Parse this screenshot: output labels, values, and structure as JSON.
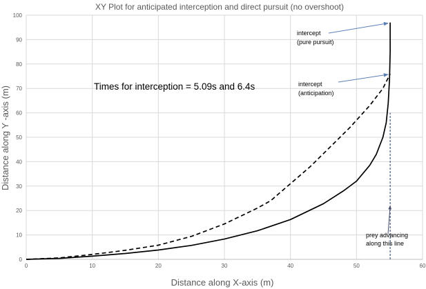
{
  "chart_data": {
    "type": "line",
    "title": "XY Plot for anticipated interception and direct pursuit  (no overshoot)",
    "xlabel": "Distance along X-axis (m)",
    "ylabel": "Distance along  Y -axis (m)",
    "xlim": [
      0,
      60
    ],
    "ylim": [
      0,
      100
    ],
    "x_ticks": [
      0,
      10,
      20,
      30,
      40,
      50,
      60
    ],
    "y_ticks": [
      0,
      10,
      20,
      30,
      40,
      50,
      60,
      70,
      80,
      90,
      100
    ],
    "grid": true,
    "legend": "none",
    "series": [
      {
        "style": "solid",
        "color": "#000000",
        "points": [
          [
            0,
            0
          ],
          [
            5,
            0.4
          ],
          [
            10,
            1.3
          ],
          [
            15,
            2.4
          ],
          [
            20,
            3.8
          ],
          [
            25,
            5.7
          ],
          [
            30,
            8.3
          ],
          [
            35,
            11.7
          ],
          [
            40,
            16.3
          ],
          [
            45,
            22.8
          ],
          [
            48,
            28
          ],
          [
            50,
            32
          ],
          [
            52,
            38.5
          ],
          [
            53,
            43
          ],
          [
            54,
            50
          ],
          [
            54.5,
            56
          ],
          [
            54.8,
            64
          ],
          [
            55,
            74
          ],
          [
            55.1,
            85
          ],
          [
            55.1,
            97
          ]
        ]
      },
      {
        "style": "dashed",
        "color": "#000000",
        "points": [
          [
            0,
            0
          ],
          [
            5,
            0.6
          ],
          [
            10,
            2
          ],
          [
            15,
            3.7
          ],
          [
            20,
            5.8
          ],
          [
            25,
            9.4
          ],
          [
            30,
            14.5
          ],
          [
            35,
            21
          ],
          [
            37,
            24
          ],
          [
            40,
            31
          ],
          [
            43,
            38
          ],
          [
            46,
            46
          ],
          [
            49,
            54
          ],
          [
            52,
            63
          ],
          [
            54,
            70
          ],
          [
            55.1,
            76
          ]
        ]
      },
      {
        "style": "dashed",
        "color": "#1f3864",
        "points": [
          [
            55.1,
            0
          ],
          [
            55.1,
            60
          ]
        ]
      }
    ],
    "annotations": [
      {
        "lines": [
          "intercept",
          "(pure pursuit)"
        ],
        "arrow_to": [
          55.1,
          97
        ]
      },
      {
        "lines": [
          "intercept",
          "(anticipation)"
        ],
        "arrow_to": [
          55.1,
          76
        ]
      },
      {
        "lines": [
          "prey advancing",
          "along this line"
        ],
        "arrow_to": [
          55.1,
          22
        ]
      },
      {
        "lines": [
          "Times for interception = 5.09s and 6.4s"
        ]
      }
    ]
  }
}
